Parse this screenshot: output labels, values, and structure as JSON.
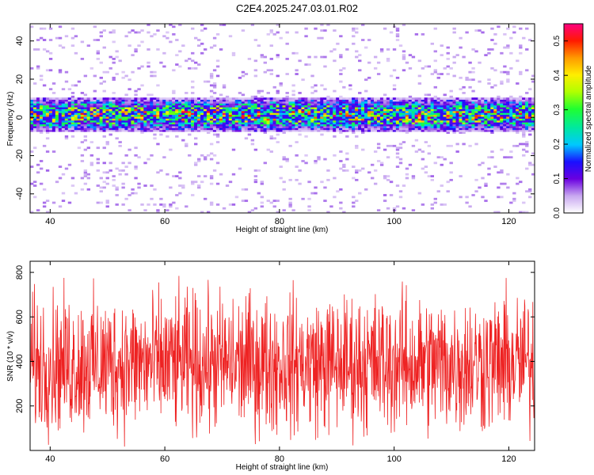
{
  "title": "C2E4.2025.247.03.01.R02",
  "chart_data": [
    {
      "type": "heatmap",
      "xlabel": "Height of straight line (km)",
      "ylabel": "Frequency (Hz)",
      "xlim": [
        36.5,
        124.5
      ],
      "ylim": [
        -50,
        49
      ],
      "xticks": [
        40,
        60,
        80,
        100,
        120
      ],
      "yticks": [
        -40,
        -20,
        0,
        20,
        40
      ],
      "ytick_labels": [
        "-40",
        "-20",
        "0",
        "20",
        "40"
      ],
      "band_center_hz": 1.5,
      "band_halfwidth_hz": 7,
      "peak_amplitude": 0.5,
      "colorbar": {
        "label": "Normalized spectral amplitude",
        "range": [
          0.0,
          0.55
        ],
        "ticks": [
          0.0,
          0.1,
          0.2,
          0.3,
          0.4,
          0.5
        ],
        "tick_labels": [
          "0.0",
          "0.1",
          "0.2",
          "0.3",
          "0.4",
          "0.5"
        ]
      }
    },
    {
      "type": "line",
      "xlabel": "Height of straight line (km)",
      "ylabel": "SNR (10 * v/v)",
      "xlim": [
        36.5,
        124.5
      ],
      "ylim": [
        0,
        850
      ],
      "xticks": [
        40,
        60,
        80,
        100,
        120
      ],
      "yticks": [
        200,
        400,
        600,
        800
      ],
      "mean": 390,
      "typical_min": 60,
      "typical_max": 760,
      "series": [
        {
          "name": "SNR",
          "color": "#ee2222"
        }
      ]
    }
  ]
}
